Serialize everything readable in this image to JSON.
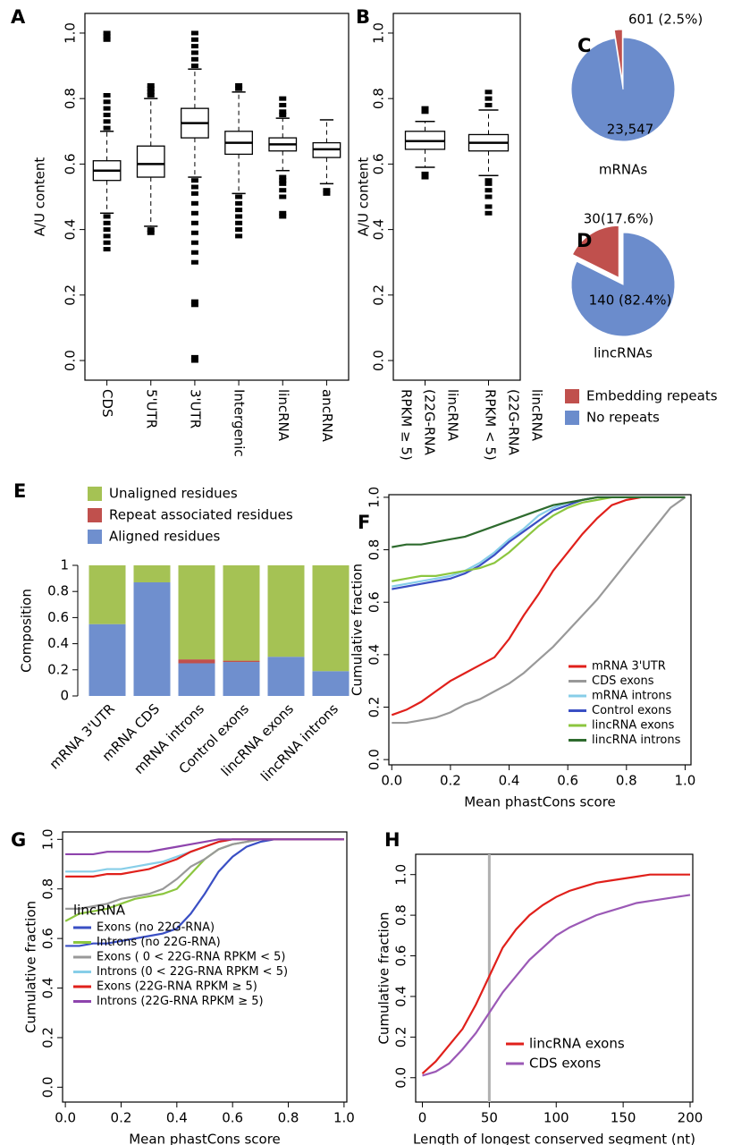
{
  "chart_data": [
    {
      "type": "box",
      "panel": "A",
      "ylabel": "A/U content",
      "categories": [
        "CDS",
        "5'UTR",
        "3'UTR",
        "Intergenic",
        "lincRNA",
        "ancRNA"
      ],
      "ylim": [
        -0.06,
        1.06
      ],
      "yticks": [
        {
          "value": 0,
          "label": "0.0"
        },
        0.2,
        0.4,
        0.6,
        0.8,
        {
          "value": 1,
          "label": "1.0"
        }
      ],
      "boxes": [
        {
          "whislo": 0.45,
          "q1": 0.55,
          "med": 0.58,
          "q3": 0.61,
          "whishi": 0.7,
          "outliers": [
            0.34,
            0.36,
            0.38,
            0.4,
            0.42,
            0.44,
            0.71,
            0.73,
            0.75,
            0.77,
            0.79,
            0.81,
            0.98,
            0.99,
            1.0
          ]
        },
        {
          "whislo": 0.41,
          "q1": 0.56,
          "med": 0.6,
          "q3": 0.655,
          "whishi": 0.8,
          "outliers": [
            0.39,
            0.4,
            0.81,
            0.82,
            0.83,
            0.84
          ]
        },
        {
          "whislo": 0.56,
          "q1": 0.68,
          "med": 0.725,
          "q3": 0.77,
          "whishi": 0.89,
          "outliers": [
            0.0,
            0.01,
            0.17,
            0.18,
            0.3,
            0.33,
            0.36,
            0.39,
            0.42,
            0.45,
            0.48,
            0.51,
            0.53,
            0.55,
            0.9,
            0.92,
            0.94,
            0.96,
            0.98,
            1.0
          ]
        },
        {
          "whislo": 0.51,
          "q1": 0.63,
          "med": 0.665,
          "q3": 0.7,
          "whishi": 0.82,
          "outliers": [
            0.38,
            0.4,
            0.42,
            0.44,
            0.46,
            0.48,
            0.5,
            0.83,
            0.84
          ]
        },
        {
          "whislo": 0.58,
          "q1": 0.64,
          "med": 0.66,
          "q3": 0.68,
          "whishi": 0.74,
          "outliers": [
            0.44,
            0.45,
            0.5,
            0.52,
            0.54,
            0.55,
            0.56,
            0.75,
            0.76,
            0.78,
            0.8
          ]
        },
        {
          "whislo": 0.54,
          "q1": 0.62,
          "med": 0.645,
          "q3": 0.665,
          "whishi": 0.735,
          "outliers": [
            0.51,
            0.52
          ]
        }
      ]
    },
    {
      "type": "box",
      "panel": "B",
      "ylabel": "A/U content",
      "categories": [
        [
          "lincRNA",
          "(22G-RNA",
          "RPKM ≥ 5)"
        ],
        [
          "lincRNA",
          "(22G-RNA",
          "RPKM < 5)"
        ]
      ],
      "ylim": [
        -0.06,
        1.06
      ],
      "yticks": [
        {
          "value": 0,
          "label": "0.0"
        },
        0.2,
        0.4,
        0.6,
        0.8,
        {
          "value": 1,
          "label": "1.0"
        }
      ],
      "boxes": [
        {
          "whislo": 0.59,
          "q1": 0.645,
          "med": 0.67,
          "q3": 0.7,
          "whishi": 0.73,
          "outliers": [
            0.56,
            0.57,
            0.76,
            0.77
          ]
        },
        {
          "whislo": 0.565,
          "q1": 0.64,
          "med": 0.665,
          "q3": 0.69,
          "whishi": 0.765,
          "outliers": [
            0.45,
            0.47,
            0.5,
            0.52,
            0.54,
            0.55,
            0.78,
            0.8,
            0.82
          ]
        }
      ]
    },
    {
      "type": "pie",
      "panel": "C",
      "label": "mRNAs",
      "values": [
        601,
        23547
      ],
      "value_labels": [
        "601 (2.5%)",
        "23,547"
      ],
      "colors": [
        "#c0504d",
        "#6b8ccc"
      ]
    },
    {
      "type": "pie",
      "panel": "D",
      "label": "lincRNAs",
      "values": [
        30,
        140
      ],
      "value_labels": [
        "30(17.6%)",
        "140 (82.4%)"
      ],
      "colors": [
        "#c0504d",
        "#6b8ccc"
      ],
      "categories": [
        "Embedding repeats",
        "No repeats"
      ]
    },
    {
      "type": "stacked_bar",
      "panel": "E",
      "ylabel": "Composition",
      "categories": [
        "mRNA 3'UTR",
        "mRNA CDS",
        "mRNA introns",
        "Control exons",
        "lincRNA exons",
        "lincRNA introns"
      ],
      "ylim": [
        0,
        1
      ],
      "yticks": [
        0,
        0.2,
        0.4,
        0.6,
        0.8,
        1
      ],
      "series": [
        {
          "name": "Aligned residues",
          "color": "#6f8fce",
          "values": [
            0.55,
            0.87,
            0.25,
            0.26,
            0.3,
            0.19
          ]
        },
        {
          "name": "Repeat associated residues",
          "color": "#c0504d",
          "values": [
            0,
            0,
            0.03,
            0.01,
            0,
            0
          ]
        },
        {
          "name": "Unaligned residues",
          "color": "#a5c254",
          "values": [
            0.45,
            0.13,
            0.72,
            0.73,
            0.7,
            0.81
          ]
        }
      ]
    },
    {
      "type": "line",
      "panel": "F",
      "xlabel": "Mean phastCons score",
      "ylabel": "Cumulative fraction",
      "legend": "bottom-right",
      "x": [
        0,
        0.05,
        0.1,
        0.15,
        0.2,
        0.25,
        0.3,
        0.35,
        0.4,
        0.45,
        0.5,
        0.55,
        0.6,
        0.65,
        0.7,
        0.75,
        0.8,
        0.85,
        0.9,
        0.95,
        1
      ],
      "xlim": [
        -0.01,
        1.02
      ],
      "ylim": [
        -0.02,
        1.01
      ],
      "xticks": [
        {
          "value": 0,
          "label": "0.0"
        },
        0.2,
        0.4,
        0.6,
        0.8,
        {
          "value": 1,
          "label": "1.0"
        }
      ],
      "yticks": [
        {
          "value": 0,
          "label": "0.0"
        },
        0.2,
        0.4,
        0.6,
        0.8,
        {
          "value": 1,
          "label": "1.0"
        }
      ],
      "series": [
        {
          "name": "mRNA 3'UTR",
          "color": "#e0201b",
          "values": [
            0.17,
            0.19,
            0.22,
            0.26,
            0.3,
            0.33,
            0.36,
            0.39,
            0.46,
            0.55,
            0.63,
            0.72,
            0.79,
            0.86,
            0.92,
            0.97,
            0.99,
            1,
            1,
            1,
            1
          ]
        },
        {
          "name": "CDS exons",
          "color": "#999999",
          "values": [
            0.14,
            0.14,
            0.15,
            0.16,
            0.18,
            0.21,
            0.23,
            0.26,
            0.29,
            0.33,
            0.38,
            0.43,
            0.49,
            0.55,
            0.61,
            0.68,
            0.75,
            0.82,
            0.89,
            0.96,
            1
          ]
        },
        {
          "name": "mRNA introns",
          "color": "#87cee8",
          "values": [
            0.66,
            0.67,
            0.68,
            0.69,
            0.7,
            0.72,
            0.75,
            0.79,
            0.84,
            0.88,
            0.93,
            0.96,
            0.98,
            0.99,
            1,
            1,
            1,
            1,
            1,
            1,
            1
          ]
        },
        {
          "name": "Control exons",
          "color": "#3a4fc4",
          "values": [
            0.65,
            0.66,
            0.67,
            0.68,
            0.69,
            0.71,
            0.74,
            0.78,
            0.83,
            0.87,
            0.91,
            0.95,
            0.97,
            0.99,
            1,
            1,
            1,
            1,
            1,
            1,
            1
          ]
        },
        {
          "name": "lincRNA exons",
          "color": "#8cc63f",
          "values": [
            0.68,
            0.69,
            0.7,
            0.7,
            0.71,
            0.72,
            0.73,
            0.75,
            0.79,
            0.84,
            0.89,
            0.93,
            0.96,
            0.98,
            0.99,
            1,
            1,
            1,
            1,
            1,
            1
          ]
        },
        {
          "name": "lincRNA introns",
          "color": "#2e6b2e",
          "values": [
            0.81,
            0.82,
            0.82,
            0.83,
            0.84,
            0.85,
            0.87,
            0.89,
            0.91,
            0.93,
            0.95,
            0.97,
            0.98,
            0.99,
            1,
            1,
            1,
            1,
            1,
            1,
            1
          ]
        }
      ]
    },
    {
      "type": "line",
      "panel": "G",
      "xlabel": "Mean phastCons score",
      "ylabel": "Cumulative fraction",
      "legend": "bottom-left",
      "legend_title": "lincRNA",
      "x": [
        0,
        0.05,
        0.1,
        0.15,
        0.2,
        0.25,
        0.3,
        0.35,
        0.4,
        0.45,
        0.5,
        0.55,
        0.6,
        0.65,
        0.7,
        0.75,
        0.8,
        0.85,
        0.9,
        0.95,
        1
      ],
      "xlim": [
        -0.01,
        1.01
      ],
      "ylim": [
        -0.06,
        1.03
      ],
      "xticks": [
        {
          "value": 0,
          "label": "0.0"
        },
        0.2,
        0.4,
        0.6,
        0.8,
        {
          "value": 1,
          "label": "1.0"
        }
      ],
      "yticks": [
        {
          "value": 0,
          "label": "0.0"
        },
        0.2,
        0.4,
        0.6,
        0.8,
        {
          "value": 1,
          "label": "1.0"
        }
      ],
      "series": [
        {
          "name": "Exons (no 22G-RNA)",
          "color": "#3a4fc4",
          "values": [
            0.57,
            0.57,
            0.58,
            0.58,
            0.59,
            0.6,
            0.61,
            0.62,
            0.64,
            0.7,
            0.78,
            0.87,
            0.93,
            0.97,
            0.99,
            1,
            1,
            1,
            1,
            1,
            1
          ]
        },
        {
          "name": "Introns (no 22G-RNA)",
          "color": "#8cc63f",
          "values": [
            0.67,
            0.7,
            0.71,
            0.72,
            0.74,
            0.76,
            0.77,
            0.78,
            0.8,
            0.86,
            0.92,
            0.96,
            0.98,
            0.99,
            1,
            1,
            1,
            1,
            1,
            1,
            1
          ]
        },
        {
          "name": "Exons ( 0 < 22G-RNA RPKM < 5)",
          "color": "#999999",
          "values": [
            0.72,
            0.72,
            0.73,
            0.74,
            0.76,
            0.77,
            0.78,
            0.8,
            0.84,
            0.89,
            0.92,
            0.96,
            0.98,
            0.99,
            1,
            1,
            1,
            1,
            1,
            1,
            1
          ]
        },
        {
          "name": "Introns (0 < 22G-RNA RPKM < 5)",
          "color": "#87cee8",
          "values": [
            0.87,
            0.87,
            0.87,
            0.88,
            0.88,
            0.89,
            0.9,
            0.91,
            0.93,
            0.95,
            0.97,
            0.99,
            1,
            1,
            1,
            1,
            1,
            1,
            1,
            1,
            1
          ]
        },
        {
          "name": "Exons (22G-RNA RPKM ≥ 5)",
          "color": "#e0201b",
          "values": [
            0.85,
            0.85,
            0.85,
            0.86,
            0.86,
            0.87,
            0.88,
            0.9,
            0.92,
            0.95,
            0.97,
            0.99,
            1,
            1,
            1,
            1,
            1,
            1,
            1,
            1,
            1
          ]
        },
        {
          "name": "Introns (22G-RNA RPKM ≥ 5)",
          "color": "#8e44ad",
          "values": [
            0.94,
            0.94,
            0.94,
            0.95,
            0.95,
            0.95,
            0.95,
            0.96,
            0.97,
            0.98,
            0.99,
            1,
            1,
            1,
            1,
            1,
            1,
            1,
            1,
            1,
            1
          ]
        }
      ]
    },
    {
      "type": "line",
      "panel": "H",
      "xlabel": "Length of longest conserved segment (nt)",
      "ylabel": "Cumulative fraction",
      "legend": "bottom-right",
      "x": [
        0,
        10,
        20,
        30,
        40,
        50,
        60,
        70,
        80,
        90,
        100,
        110,
        120,
        130,
        140,
        150,
        160,
        170,
        180,
        190,
        200
      ],
      "xlim": [
        -5,
        202
      ],
      "ylim": [
        -0.12,
        1.1
      ],
      "xticks": [
        0,
        50,
        100,
        150,
        200
      ],
      "yticks": [
        {
          "value": 0,
          "label": "0.0"
        },
        0.2,
        0.4,
        0.6,
        0.8,
        {
          "value": 1,
          "label": "1.0"
        }
      ],
      "vline": 50,
      "vline_color": "#b0b0b0",
      "series": [
        {
          "name": "lincRNA exons",
          "color": "#e0201b",
          "values": [
            0.02,
            0.08,
            0.16,
            0.24,
            0.36,
            0.5,
            0.64,
            0.73,
            0.8,
            0.85,
            0.89,
            0.92,
            0.94,
            0.96,
            0.97,
            0.98,
            0.99,
            1,
            1,
            1,
            1
          ]
        },
        {
          "name": "CDS exons",
          "color": "#9b59b6",
          "values": [
            0.01,
            0.03,
            0.07,
            0.14,
            0.22,
            0.32,
            0.42,
            0.5,
            0.58,
            0.64,
            0.7,
            0.74,
            0.77,
            0.8,
            0.82,
            0.84,
            0.86,
            0.87,
            0.88,
            0.89,
            0.9
          ]
        }
      ]
    }
  ]
}
